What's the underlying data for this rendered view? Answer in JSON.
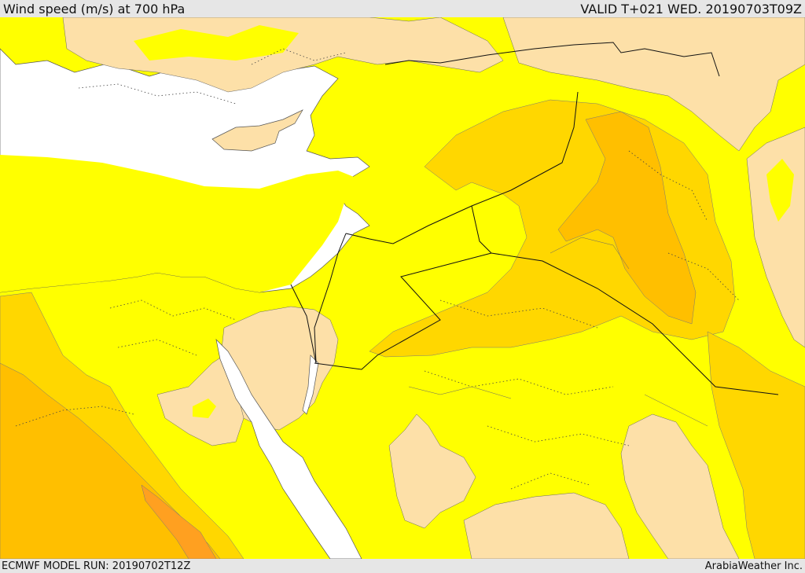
{
  "header": {
    "title": "Wind speed (m/s) at 700 hPa",
    "valid": "VALID T+021 WED. 20190703T09Z"
  },
  "footer": {
    "model_run": "ECMWF MODEL RUN: 20190702T12Z",
    "credit": "ArabiaWeather Inc."
  },
  "colors": {
    "sea": "#ffffff",
    "calm_land": "#fde0a8",
    "level_1": "#ffff00",
    "level_2": "#ffd700",
    "level_3": "#ffbf00",
    "level_4": "#ffa020",
    "border_line": "#111111",
    "admin_line": "#444444",
    "contour_line": "#666666"
  }
}
